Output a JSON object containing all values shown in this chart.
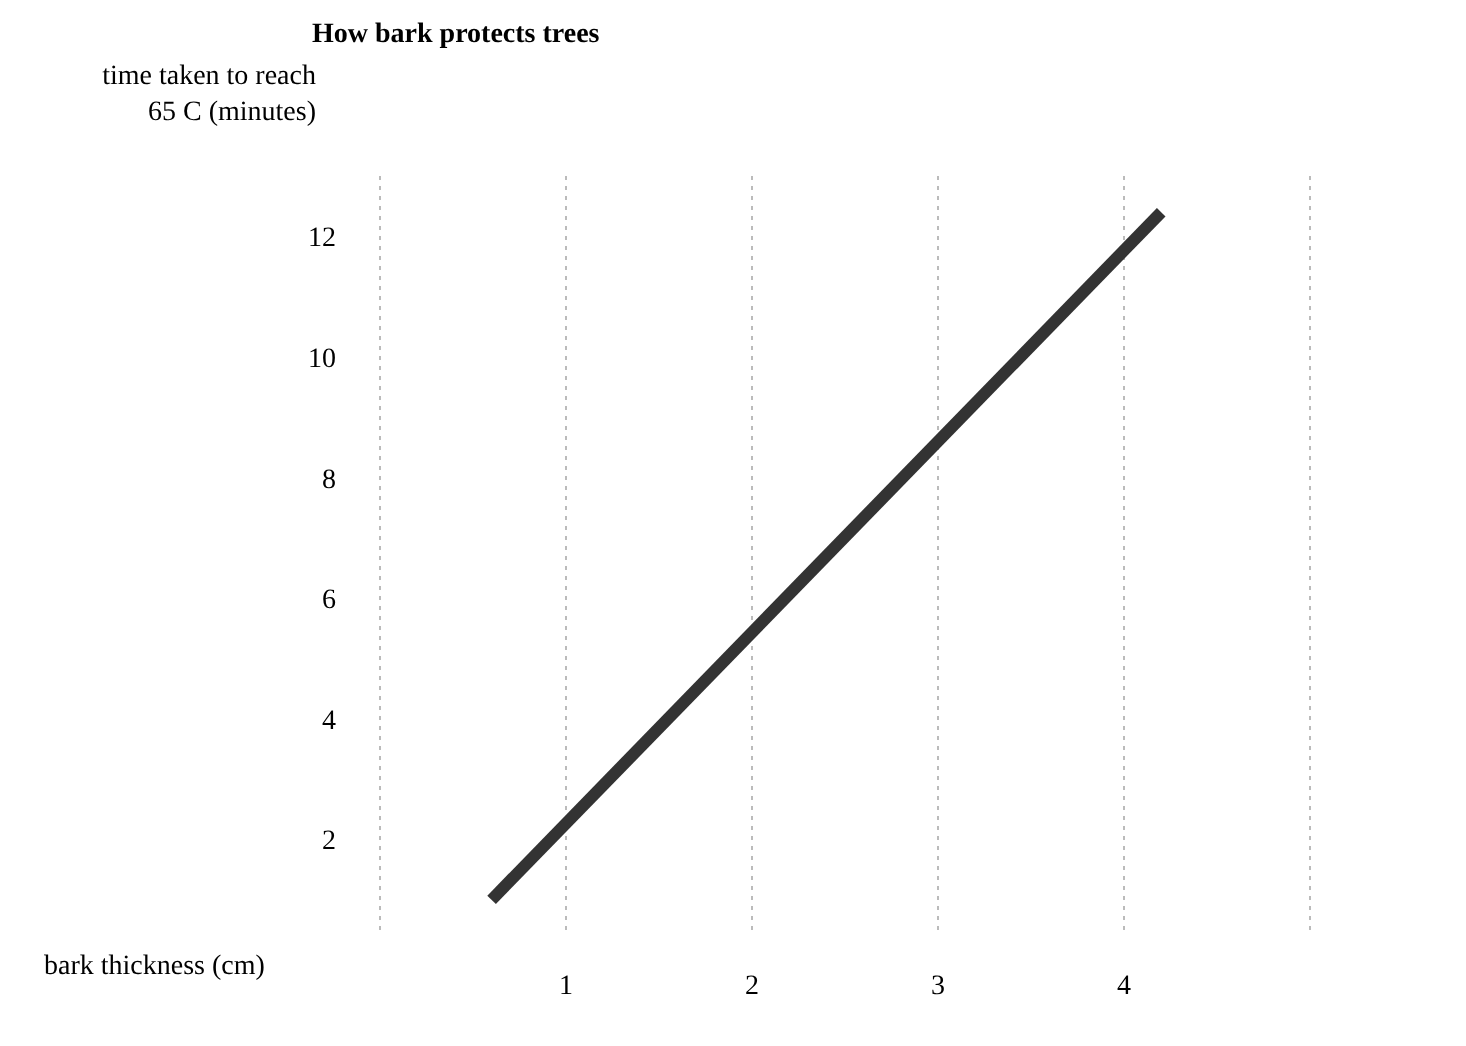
{
  "chart_data": {
    "type": "line",
    "title": "How bark protects trees",
    "xlabel": "bark thickness (cm)",
    "ylabel": "time taken to reach 65 C (minutes)",
    "x": [
      0.6,
      4.2
    ],
    "series": [
      {
        "color": "#333333",
        "values": [
          1.0,
          12.4
        ]
      }
    ],
    "xlim": [
      0,
      5
    ],
    "ylim": [
      0.5,
      13
    ],
    "xticks": [
      1,
      2,
      3,
      4
    ],
    "yticks": [
      2,
      4,
      6,
      8,
      10,
      12
    ],
    "grid": "x",
    "marker": "none",
    "line_style": "solid"
  }
}
